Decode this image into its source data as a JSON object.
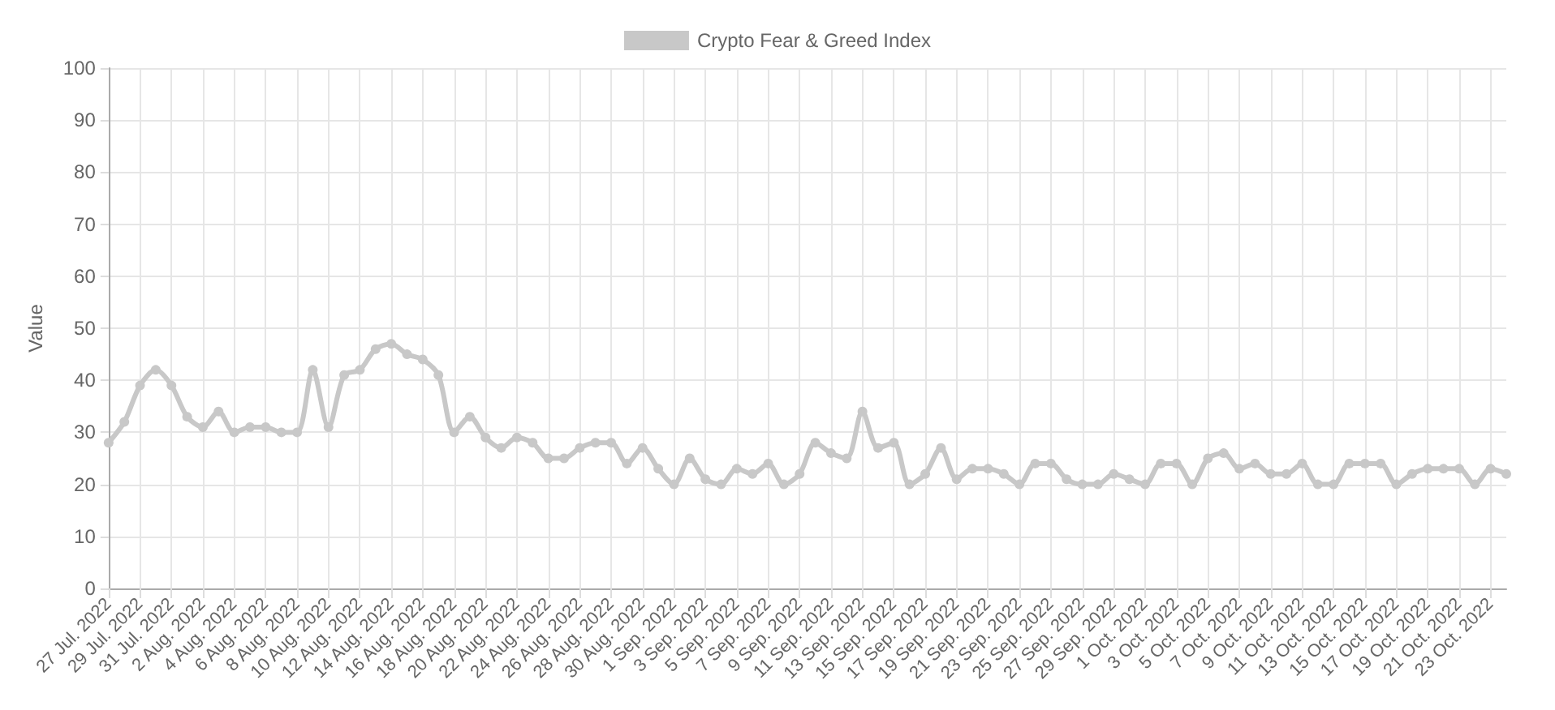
{
  "chart_data": {
    "type": "line",
    "ylabel": "Value",
    "ylim": [
      0,
      100
    ],
    "yticks": [
      0,
      10,
      20,
      30,
      40,
      50,
      60,
      70,
      80,
      90,
      100
    ],
    "grid": true,
    "legend": "top",
    "marker": "circle",
    "line_style": "solid",
    "categories": [
      "27 Jul. 2022",
      null,
      "29 Jul. 2022",
      null,
      "31 Jul. 2022",
      null,
      "2 Aug. 2022",
      null,
      "4 Aug. 2022",
      null,
      "6 Aug. 2022",
      null,
      "8 Aug. 2022",
      null,
      "10 Aug. 2022",
      null,
      "12 Aug. 2022",
      null,
      "14 Aug. 2022",
      null,
      "16 Aug. 2022",
      null,
      "18 Aug. 2022",
      null,
      "20 Aug. 2022",
      null,
      "22 Aug. 2022",
      null,
      "24 Aug. 2022",
      null,
      "26 Aug. 2022",
      null,
      "28 Aug. 2022",
      null,
      "30 Aug. 2022",
      null,
      "1 Sep. 2022",
      null,
      "3 Sep. 2022",
      null,
      "5 Sep. 2022",
      null,
      "7 Sep. 2022",
      null,
      "9 Sep. 2022",
      null,
      "11 Sep. 2022",
      null,
      "13 Sep. 2022",
      null,
      "15 Sep. 2022",
      null,
      "17 Sep. 2022",
      null,
      "19 Sep. 2022",
      null,
      "21 Sep. 2022",
      null,
      "23 Sep. 2022",
      null,
      "25 Sep. 2022",
      null,
      "27 Sep. 2022",
      null,
      "29 Sep. 2022",
      null,
      "1 Oct. 2022",
      null,
      "3 Oct. 2022",
      null,
      "5 Oct. 2022",
      null,
      "7 Oct. 2022",
      null,
      "9 Oct. 2022",
      null,
      "11 Oct. 2022",
      null,
      "13 Oct. 2022",
      null,
      "15 Oct. 2022",
      null,
      "17 Oct. 2022",
      null,
      "19 Oct. 2022",
      null,
      "21 Oct. 2022",
      null,
      "23 Oct. 2022",
      null
    ],
    "series": [
      {
        "name": "Crypto Fear & Greed Index",
        "color": "#c8c8c8",
        "values": [
          28,
          32,
          39,
          42,
          39,
          33,
          31,
          34,
          30,
          31,
          31,
          30,
          30,
          42,
          31,
          41,
          42,
          46,
          47,
          45,
          44,
          41,
          30,
          33,
          29,
          27,
          29,
          28,
          25,
          25,
          27,
          28,
          28,
          24,
          27,
          23,
          20,
          25,
          21,
          20,
          23,
          22,
          24,
          20,
          22,
          28,
          26,
          25,
          34,
          27,
          28,
          20,
          22,
          27,
          21,
          23,
          23,
          22,
          20,
          24,
          24,
          21,
          20,
          20,
          22,
          21,
          20,
          24,
          24,
          20,
          25,
          26,
          23,
          24,
          22,
          22,
          24,
          20,
          20,
          24,
          24,
          24,
          20,
          22,
          23,
          23,
          23,
          20,
          23,
          22
        ]
      }
    ]
  }
}
